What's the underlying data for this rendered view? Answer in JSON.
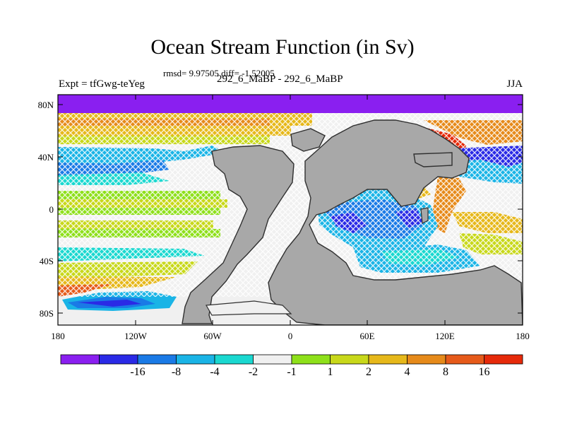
{
  "title": "Ocean Stream Function (in Sv)",
  "stats": "rmsd= 9.97505 diff= -1.52005",
  "left_label": "Expt = tfGwg-teYeg",
  "center_label": "292_6_MaBP - 292_6_MaBP",
  "right_label": "JJA",
  "lat_ticks": [
    "80N",
    "40N",
    "0",
    "40S",
    "80S"
  ],
  "lon_ticks": [
    "180",
    "120W",
    "60W",
    "0",
    "60E",
    "120E",
    "180"
  ],
  "colorbar": {
    "colors": [
      "#8a1ff0",
      "#2a2ae6",
      "#1a7ae6",
      "#1ab4e6",
      "#1ad8d0",
      "#f0f0f0",
      "#8ee01a",
      "#c8d81a",
      "#e6b81a",
      "#e68a1a",
      "#e65a1a",
      "#e62a0a"
    ],
    "labels": [
      "-16",
      "-8",
      "-4",
      "-2",
      "-1",
      "1",
      "2",
      "4",
      "8",
      "16"
    ]
  },
  "colors": {
    "land": "#a8a8a8",
    "land_outline": "#303030"
  }
}
